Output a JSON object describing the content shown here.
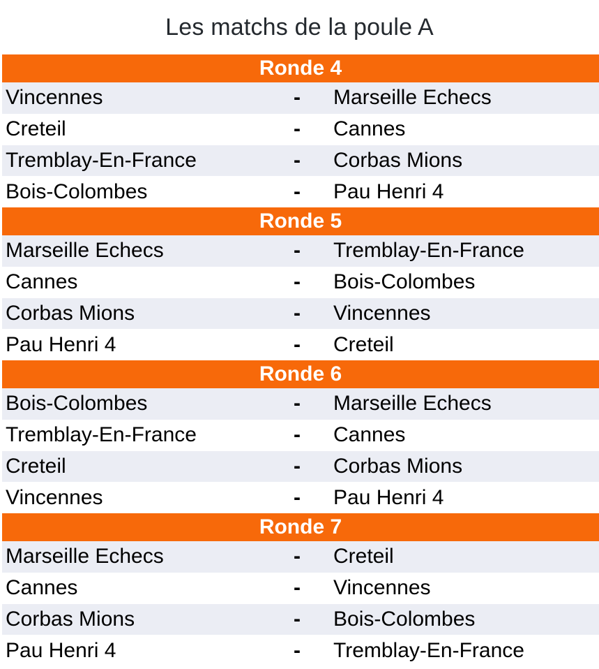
{
  "page": {
    "title": "Les matchs de la poule A"
  },
  "separator": "-",
  "colors": {
    "header_bg": "#F7690A",
    "header_text": "#FFFFFF",
    "row_alt_bg": "#EBEDF4",
    "row_bg": "#FFFFFF",
    "title_text": "#24292E",
    "row_text": "#000000"
  },
  "rounds": [
    {
      "label": "Ronde 4",
      "matches": [
        {
          "home": "Vincennes",
          "away": "Marseille Echecs"
        },
        {
          "home": "Creteil",
          "away": "Cannes"
        },
        {
          "home": "Tremblay-En-France",
          "away": "Corbas Mions"
        },
        {
          "home": "Bois-Colombes",
          "away": "Pau Henri 4"
        }
      ]
    },
    {
      "label": "Ronde 5",
      "matches": [
        {
          "home": "Marseille Echecs",
          "away": "Tremblay-En-France"
        },
        {
          "home": "Cannes",
          "away": "Bois-Colombes"
        },
        {
          "home": "Corbas Mions",
          "away": "Vincennes"
        },
        {
          "home": "Pau Henri 4",
          "away": "Creteil"
        }
      ]
    },
    {
      "label": "Ronde 6",
      "matches": [
        {
          "home": "Bois-Colombes",
          "away": "Marseille Echecs"
        },
        {
          "home": "Tremblay-En-France",
          "away": "Cannes"
        },
        {
          "home": "Creteil",
          "away": "Corbas Mions"
        },
        {
          "home": "Vincennes",
          "away": "Pau Henri 4"
        }
      ]
    },
    {
      "label": "Ronde 7",
      "matches": [
        {
          "home": "Marseille Echecs",
          "away": "Creteil"
        },
        {
          "home": "Cannes",
          "away": "Vincennes"
        },
        {
          "home": "Corbas Mions",
          "away": "Bois-Colombes"
        },
        {
          "home": "Pau Henri 4",
          "away": "Tremblay-En-France"
        }
      ]
    }
  ]
}
